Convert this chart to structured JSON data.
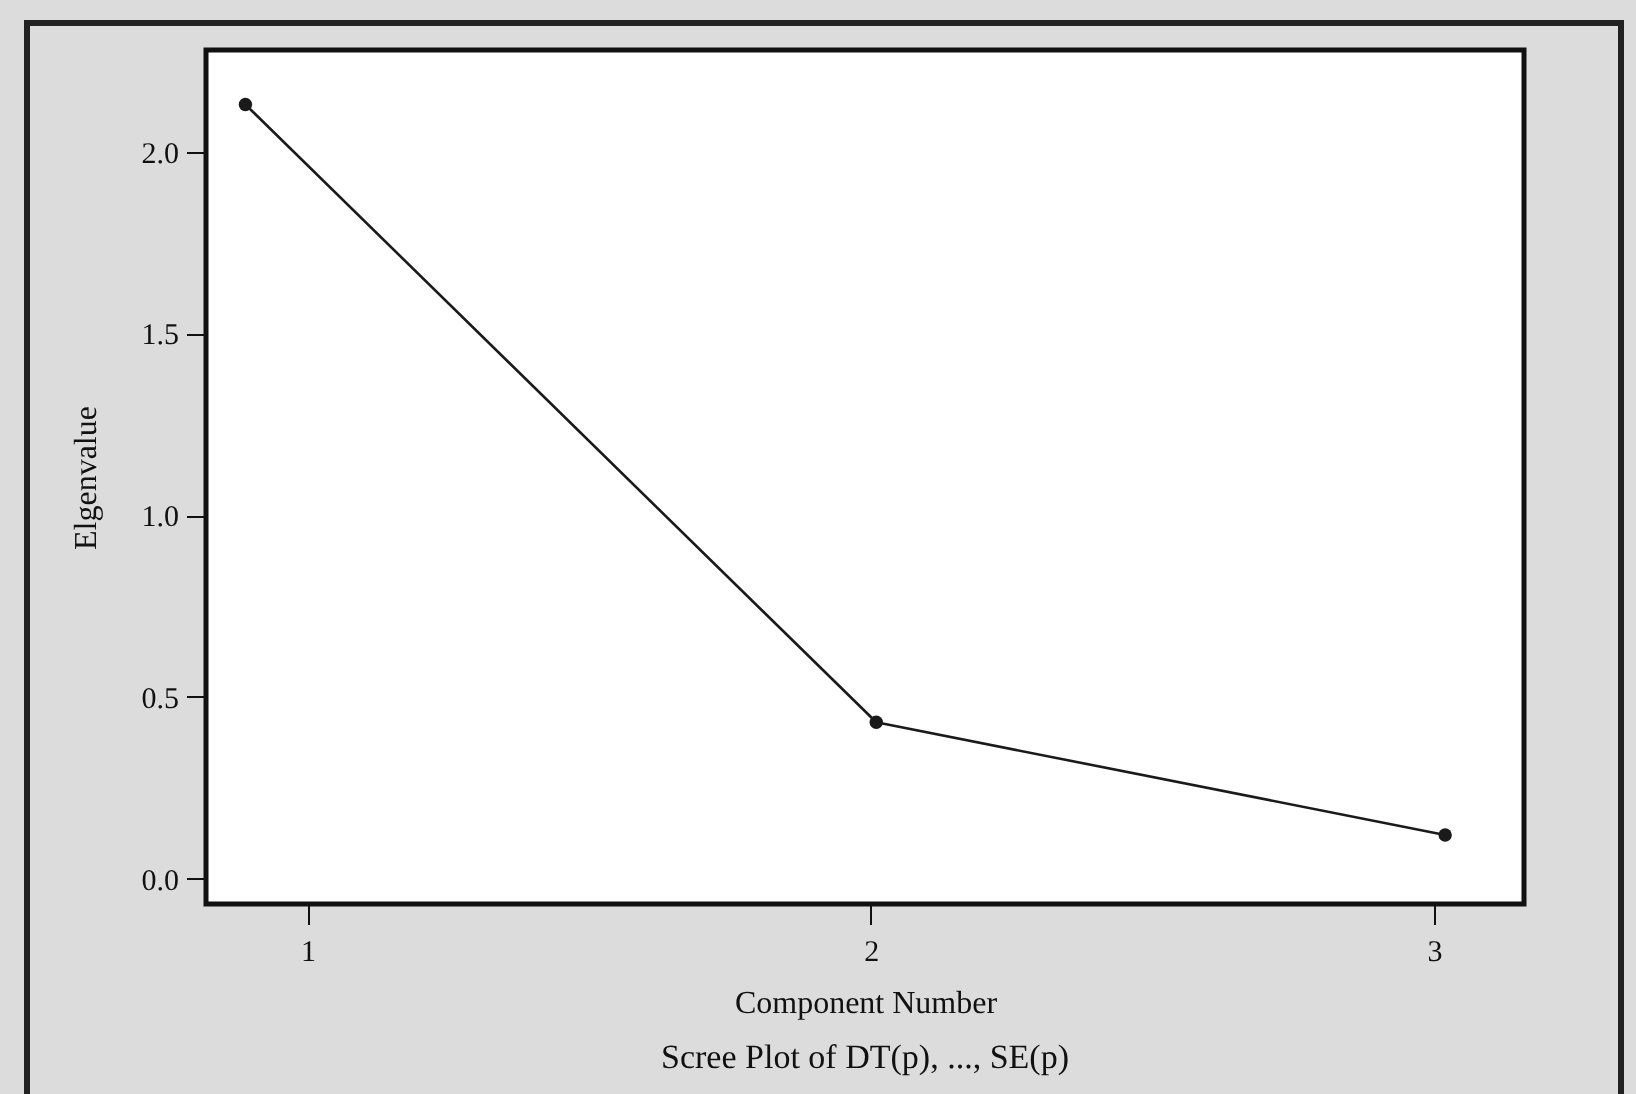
{
  "chart_data": {
    "type": "line",
    "title": "Scree Plot of DT(p), ..., SE(p)",
    "xlabel": "Component Number",
    "ylabel": "Elgenvalue",
    "x": [
      0.89,
      2.01,
      3.02
    ],
    "series": [
      {
        "color": "#1a1a1a",
        "values": [
          2.13,
          0.43,
          0.12
        ]
      }
    ],
    "xlim": [
      0.82,
      3.16
    ],
    "xticks": [
      1,
      2,
      3
    ],
    "ylim": [
      -0.07,
      2.28
    ],
    "yticks": [
      {
        "value": 0,
        "label": "0.0"
      },
      {
        "value": 0.5,
        "label": "0.5"
      },
      {
        "value": 1,
        "label": "1.0"
      },
      {
        "value": 1.5,
        "label": "1.5"
      },
      {
        "value": 2,
        "label": "2.0"
      }
    ],
    "grid": false,
    "marker": "circle",
    "line_style": "solid"
  }
}
